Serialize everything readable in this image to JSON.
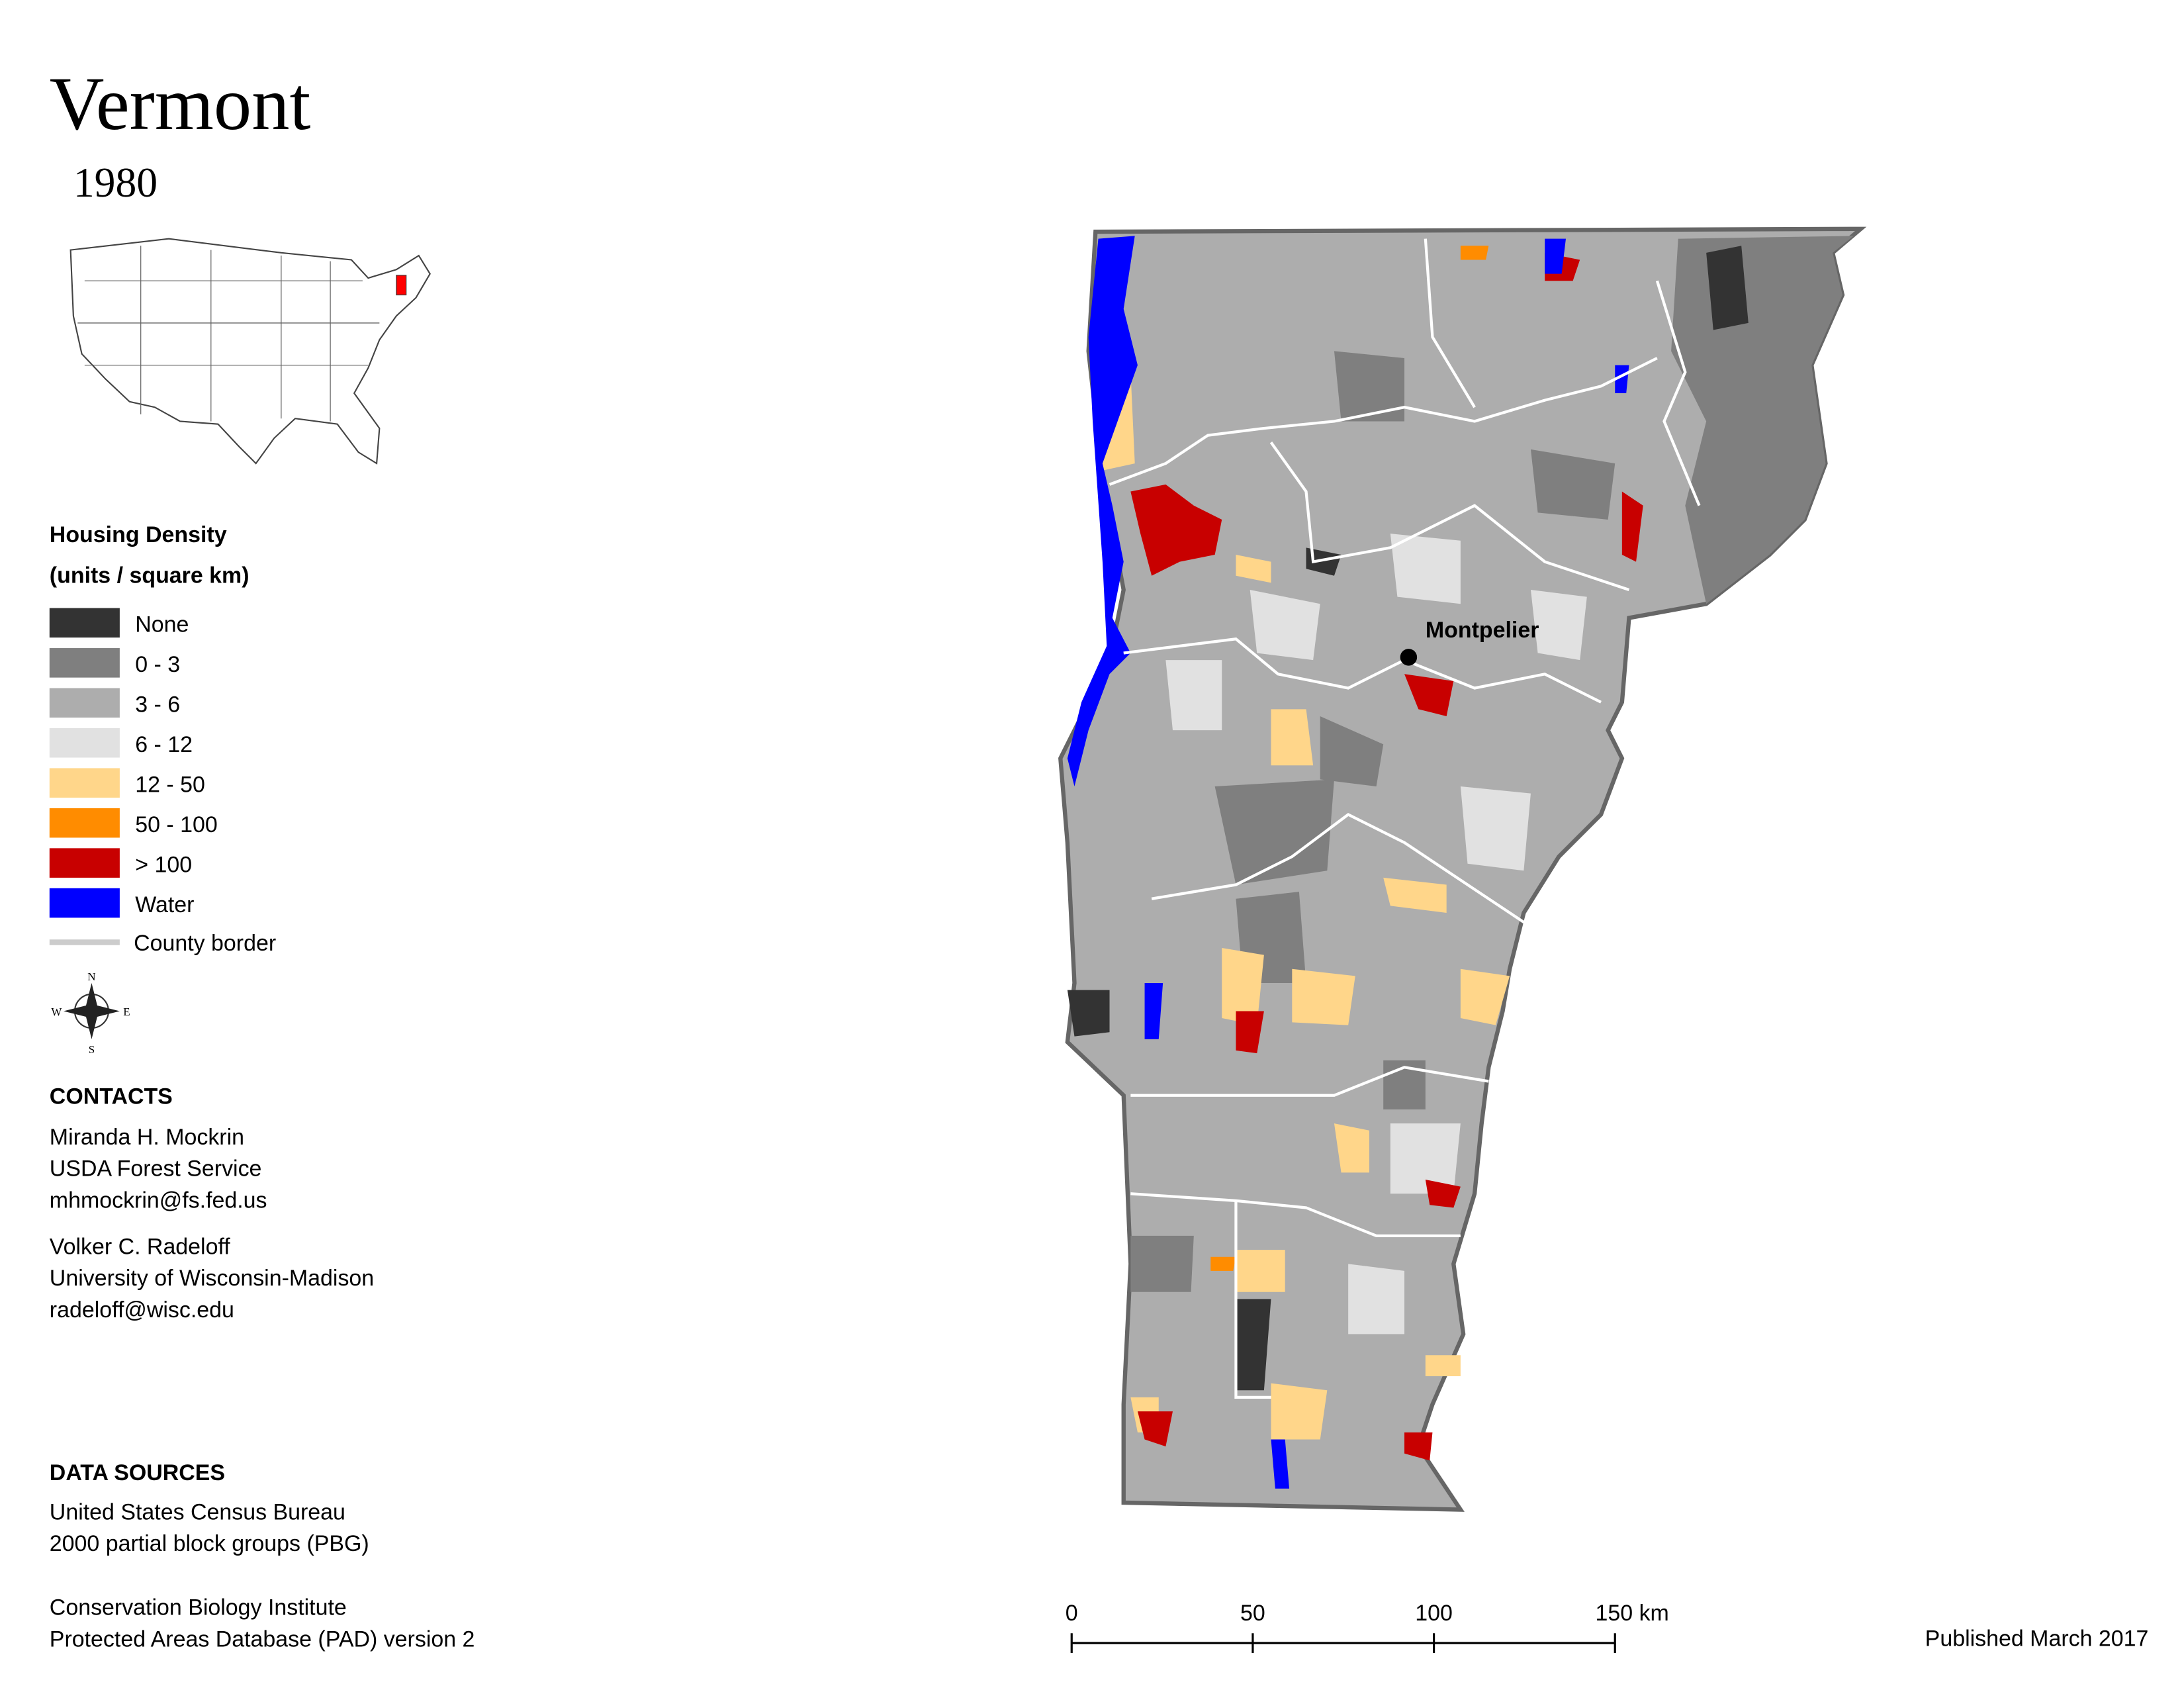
{
  "title": "Vermont",
  "year": "1980",
  "legend": {
    "title": "Housing Density",
    "subtitle": "(units / square km)",
    "items": [
      {
        "label": "None",
        "color": "#333333"
      },
      {
        "label": "0 - 3",
        "color": "#7f7f7f"
      },
      {
        "label": "3 - 6",
        "color": "#adadad"
      },
      {
        "label": "6 - 12",
        "color": "#e1e1e1"
      },
      {
        "label": "12 - 50",
        "color": "#ffd68a"
      },
      {
        "label": "50 - 100",
        "color": "#ff8c00"
      },
      {
        "label": "> 100",
        "color": "#c80000"
      },
      {
        "label": "Water",
        "color": "#0000ff"
      }
    ],
    "border_label": "County border"
  },
  "compass": {
    "n": "N",
    "e": "E",
    "s": "S",
    "w": "W"
  },
  "contacts": {
    "heading": "CONTACTS",
    "people": [
      [
        "Miranda H. Mockrin",
        "USDA Forest Service",
        "mhmockrin@fs.fed.us"
      ],
      [
        "Volker C. Radeloff",
        "University of Wisconsin-Madison",
        "radeloff@wisc.edu"
      ]
    ]
  },
  "data_sources": {
    "heading": "DATA SOURCES",
    "groups": [
      [
        "United States Census Bureau",
        "2000 partial block groups (PBG)"
      ],
      [
        "Conservation Biology Institute",
        "Protected Areas Database (PAD) version 2"
      ]
    ]
  },
  "map": {
    "city": "Montpelier"
  },
  "scale_bar": {
    "ticks": [
      0,
      50,
      100,
      {
        "value": 150,
        "label": "150 km"
      }
    ]
  },
  "published": "Published March 2017"
}
